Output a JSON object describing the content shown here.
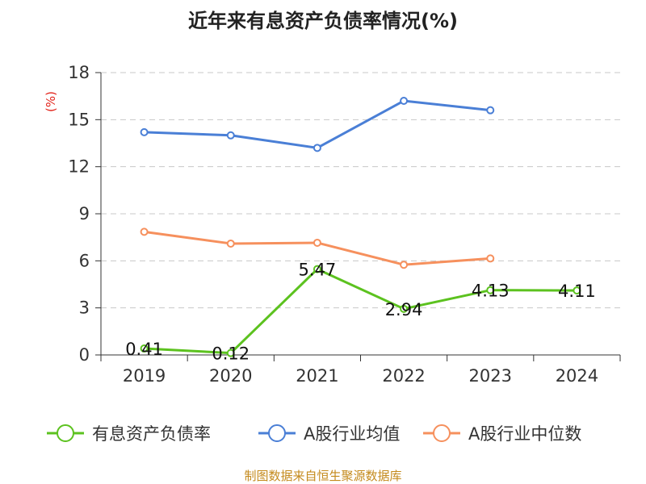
{
  "chart_data": {
    "type": "line",
    "title": "近年来有息资产负债率情况(%)",
    "ylabel": "(%)",
    "xlabel": "",
    "categories": [
      "2019",
      "2020",
      "2021",
      "2022",
      "2023",
      "2024"
    ],
    "ylim": [
      0,
      18
    ],
    "yticks": [
      0,
      3,
      6,
      9,
      12,
      15,
      18
    ],
    "grid": true,
    "legend_position": "bottom",
    "series": [
      {
        "name": "有息资产负债率",
        "color": "#5cc21f",
        "values": [
          0.41,
          0.12,
          5.47,
          2.94,
          4.13,
          4.11
        ],
        "labels": [
          "0.41",
          "0.12",
          "5.47",
          "2.94",
          "4.13",
          "4.11"
        ]
      },
      {
        "name": "A股行业均值",
        "color": "#4a7fd6",
        "values": [
          14.2,
          14.0,
          13.2,
          16.2,
          15.6,
          null
        ]
      },
      {
        "name": "A股行业中位数",
        "color": "#f6905d",
        "values": [
          7.85,
          7.1,
          7.15,
          5.75,
          6.15,
          null
        ]
      }
    ],
    "source": "制图数据来自恒生聚源数据库"
  }
}
